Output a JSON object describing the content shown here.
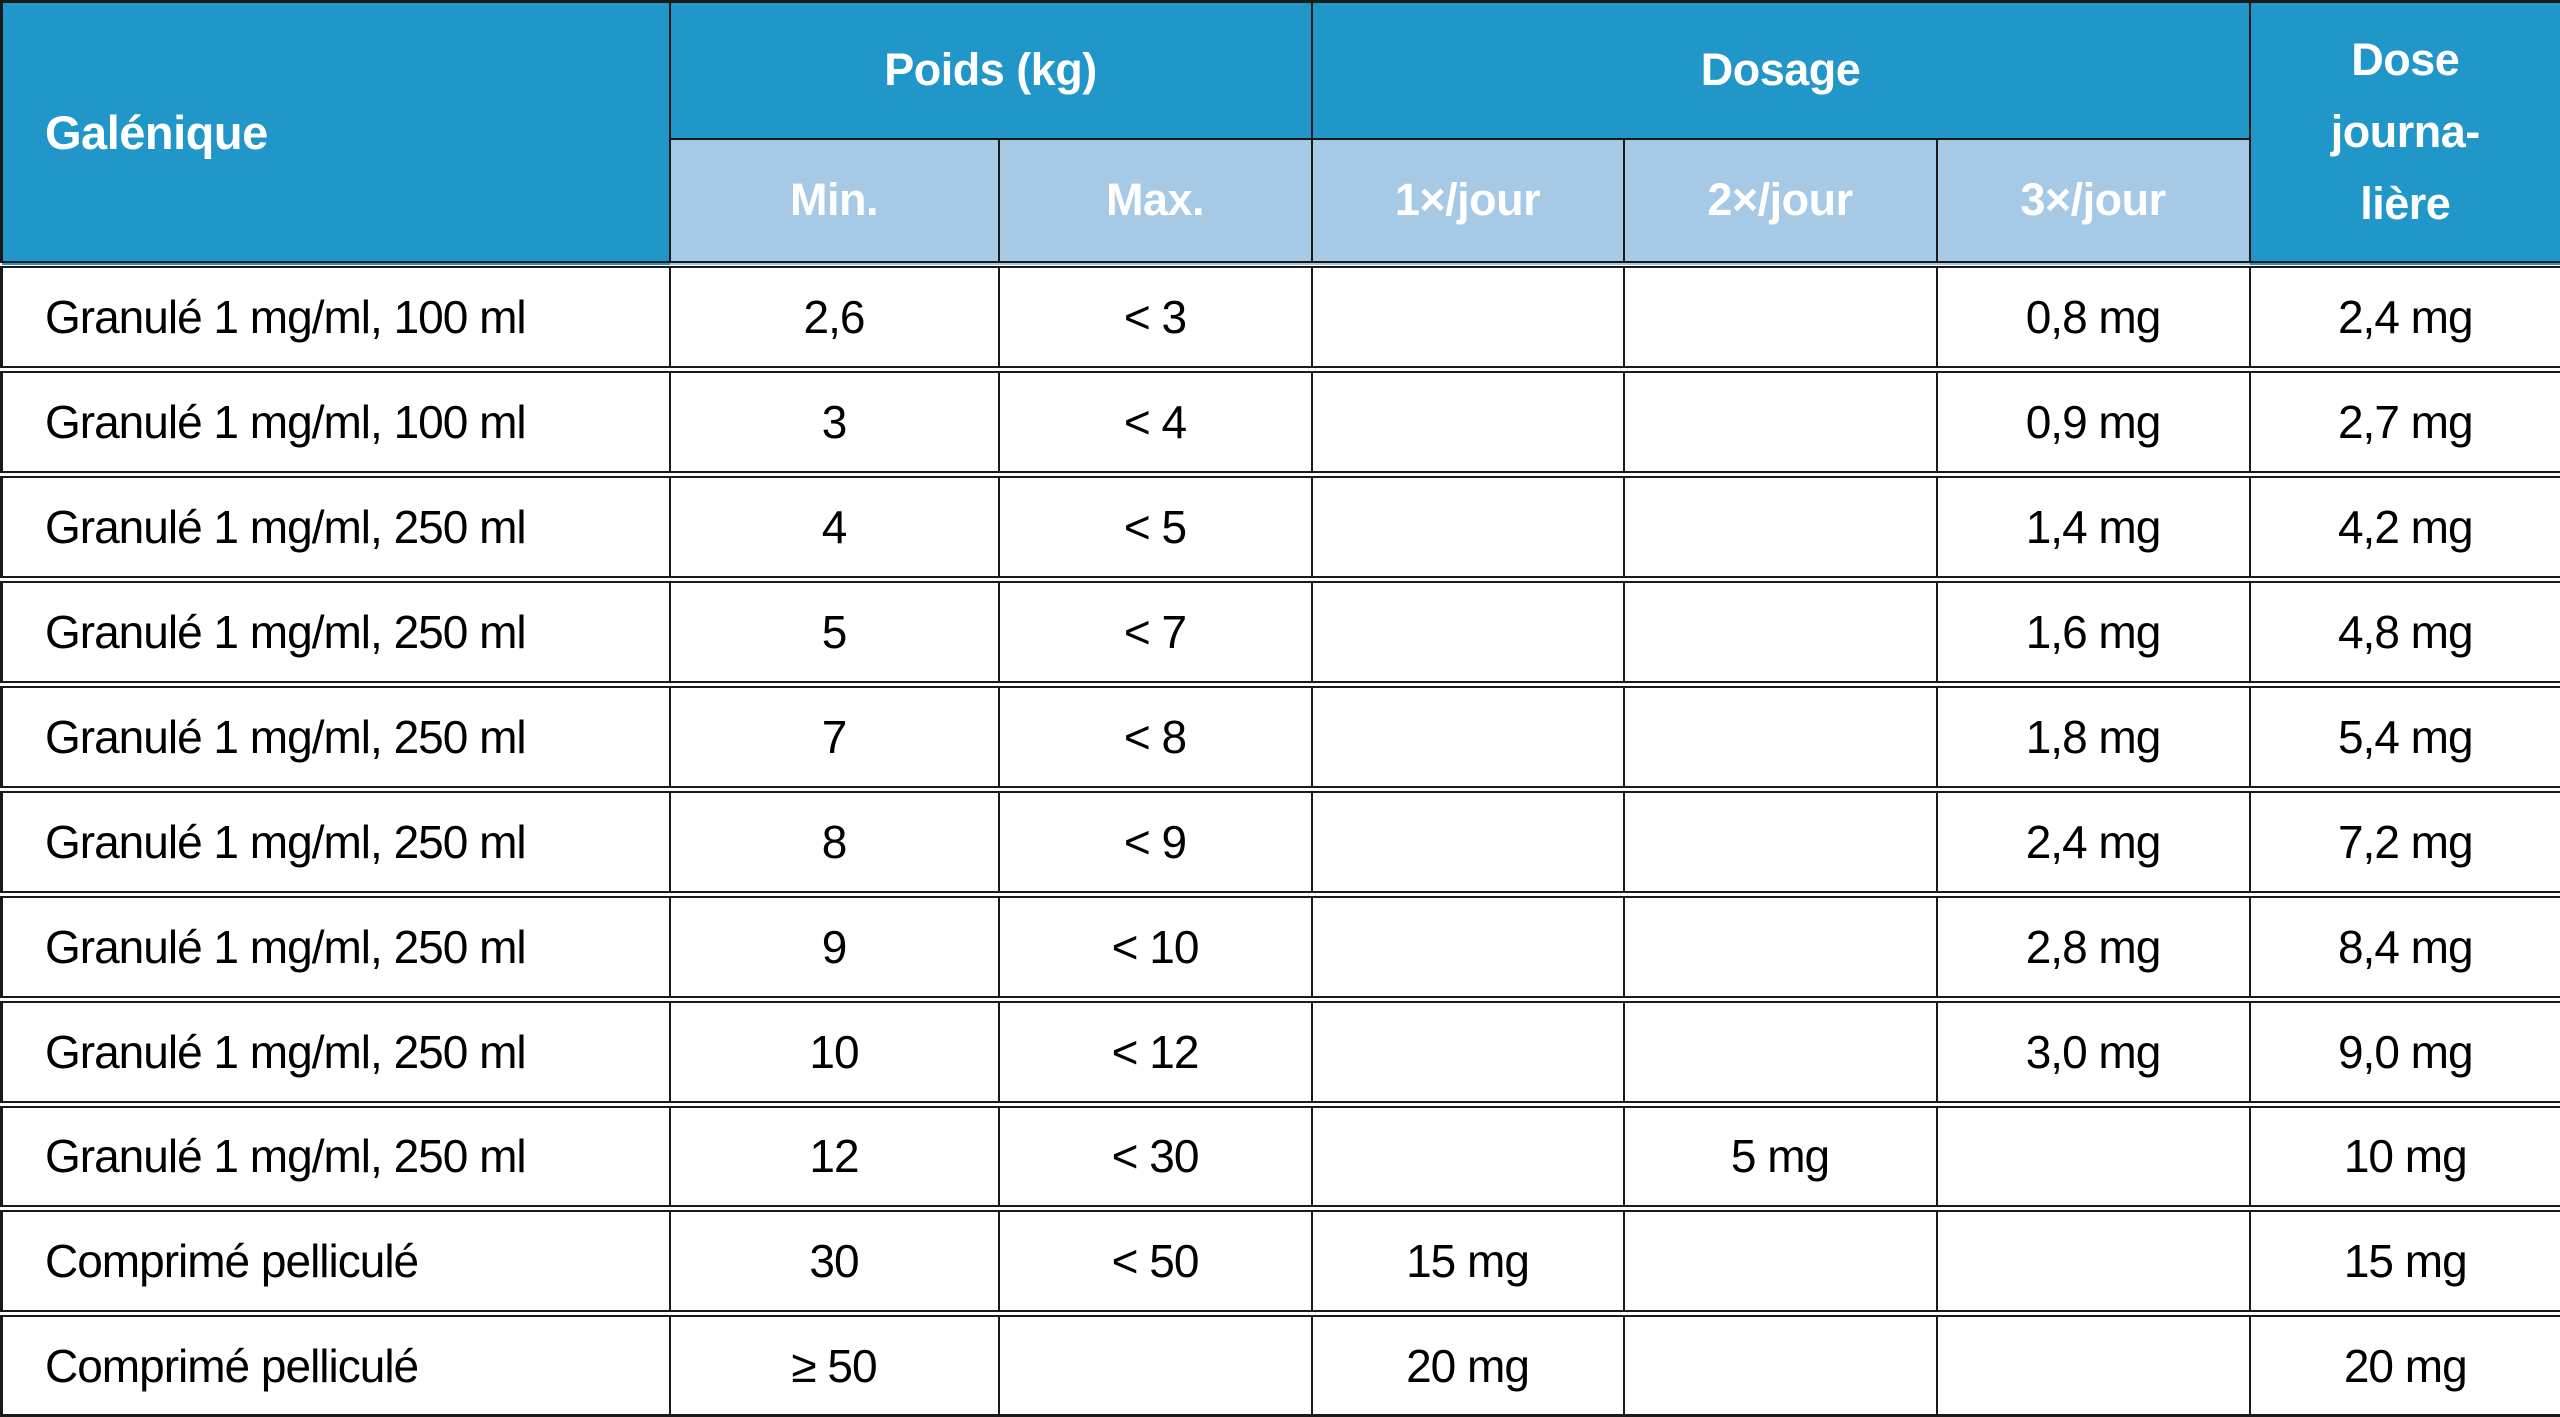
{
  "colors": {
    "header_bg": "#2196c8",
    "subheader_bg": "#a6c9e5",
    "border": "#1a1a1a",
    "header_text": "#ffffff",
    "body_text": "#000000"
  },
  "table": {
    "header": {
      "galenique": "Galénique",
      "poids": "Poids (kg)",
      "dosage": "Dosage",
      "dose_lines": [
        "Dose",
        "journa-",
        "lière"
      ],
      "min": "Min.",
      "max": "Max.",
      "jour1": "1×/jour",
      "jour2": "2×/jour",
      "jour3": "3×/jour"
    },
    "rows": [
      {
        "galenique": "Granulé 1 mg/ml, 100 ml",
        "min": "2,6",
        "max": "< 3",
        "jour1": "",
        "jour2": "",
        "jour3": "0,8 mg",
        "dose": "2,4 mg"
      },
      {
        "galenique": "Granulé 1 mg/ml, 100 ml",
        "min": "3",
        "max": "< 4",
        "jour1": "",
        "jour2": "",
        "jour3": "0,9 mg",
        "dose": "2,7 mg"
      },
      {
        "galenique": "Granulé 1 mg/ml, 250 ml",
        "min": "4",
        "max": "< 5",
        "jour1": "",
        "jour2": "",
        "jour3": "1,4 mg",
        "dose": "4,2 mg"
      },
      {
        "galenique": "Granulé 1 mg/ml, 250 ml",
        "min": "5",
        "max": "< 7",
        "jour1": "",
        "jour2": "",
        "jour3": "1,6 mg",
        "dose": "4,8 mg"
      },
      {
        "galenique": "Granulé 1 mg/ml, 250 ml",
        "min": "7",
        "max": "< 8",
        "jour1": "",
        "jour2": "",
        "jour3": "1,8 mg",
        "dose": "5,4 mg"
      },
      {
        "galenique": "Granulé 1 mg/ml, 250 ml",
        "min": "8",
        "max": "< 9",
        "jour1": "",
        "jour2": "",
        "jour3": "2,4 mg",
        "dose": "7,2 mg"
      },
      {
        "galenique": "Granulé 1 mg/ml, 250 ml",
        "min": "9",
        "max": "< 10",
        "jour1": "",
        "jour2": "",
        "jour3": "2,8 mg",
        "dose": "8,4 mg"
      },
      {
        "galenique": "Granulé 1 mg/ml, 250 ml",
        "min": "10",
        "max": "< 12",
        "jour1": "",
        "jour2": "",
        "jour3": "3,0 mg",
        "dose": "9,0 mg"
      },
      {
        "galenique": "Granulé 1 mg/ml, 250 ml",
        "min": "12",
        "max": "< 30",
        "jour1": "",
        "jour2": "5 mg",
        "jour3": "",
        "dose": "10 mg"
      },
      {
        "galenique": "Comprimé pelliculé",
        "min": "30",
        "max": "< 50",
        "jour1": "15 mg",
        "jour2": "",
        "jour3": "",
        "dose": "15 mg"
      },
      {
        "galenique": "Comprimé pelliculé",
        "min": "≥ 50",
        "max": "",
        "jour1": "20 mg",
        "jour2": "",
        "jour3": "",
        "dose": "20 mg"
      }
    ]
  }
}
